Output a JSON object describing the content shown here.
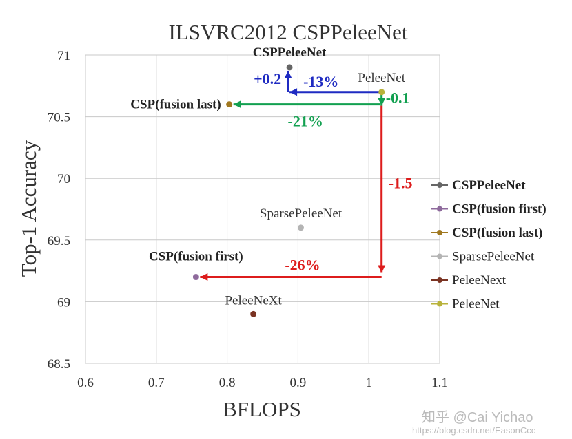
{
  "chart_data": {
    "type": "scatter",
    "title": "ILSVRC2012 CSPPeleeNet",
    "xlabel": "BFLOPS",
    "ylabel": "Top-1 Accuracy",
    "xlim": [
      0.6,
      1.1
    ],
    "ylim": [
      68.5,
      71
    ],
    "xticks": [
      "0.6",
      "0.7",
      "0.8",
      "0.9",
      "1",
      "1.1"
    ],
    "yticks": [
      "68.5",
      "69",
      "69.5",
      "70",
      "70.5",
      "71"
    ],
    "grid": true,
    "legend_position": "right",
    "series": [
      {
        "name": "CSPPeleeNet",
        "x": 0.888,
        "y": 70.9,
        "color": "#666666",
        "label": "CSPPeleeNet",
        "bold": true
      },
      {
        "name": "CSP(fusion first)",
        "x": 0.756,
        "y": 69.2,
        "color": "#8e6a9c",
        "label": "CSP(fusion first)",
        "bold": true
      },
      {
        "name": "CSP(fusion last)",
        "x": 0.803,
        "y": 70.6,
        "color": "#a07820",
        "label": "CSP(fusion last)",
        "bold": true
      },
      {
        "name": "SparsePeleeNet",
        "x": 0.904,
        "y": 69.6,
        "color": "#b4b4b4",
        "label": "SparsePeleeNet",
        "bold": false
      },
      {
        "name": "PeleeNext",
        "x": 0.837,
        "y": 68.9,
        "color": "#7a3322",
        "label": "PeleeNeXt",
        "bold": false
      },
      {
        "name": "PeleeNet",
        "x": 1.018,
        "y": 70.7,
        "color": "#b8b23a",
        "label": "PeleeNet",
        "bold": false
      }
    ],
    "annotations": [
      {
        "text": "+0.2",
        "color": "#1f2bc2"
      },
      {
        "text": "-13%",
        "color": "#1f2bc2"
      },
      {
        "text": "-0.1",
        "color": "#12a050"
      },
      {
        "text": "-21%",
        "color": "#12a050"
      },
      {
        "text": "-1.5",
        "color": "#dd1c1c"
      },
      {
        "text": "-26%",
        "color": "#dd1c1c"
      }
    ]
  },
  "watermark": {
    "zhihu": "知乎 @Cai Yichao",
    "url": "https://blog.csdn.net/EasonCcc"
  }
}
